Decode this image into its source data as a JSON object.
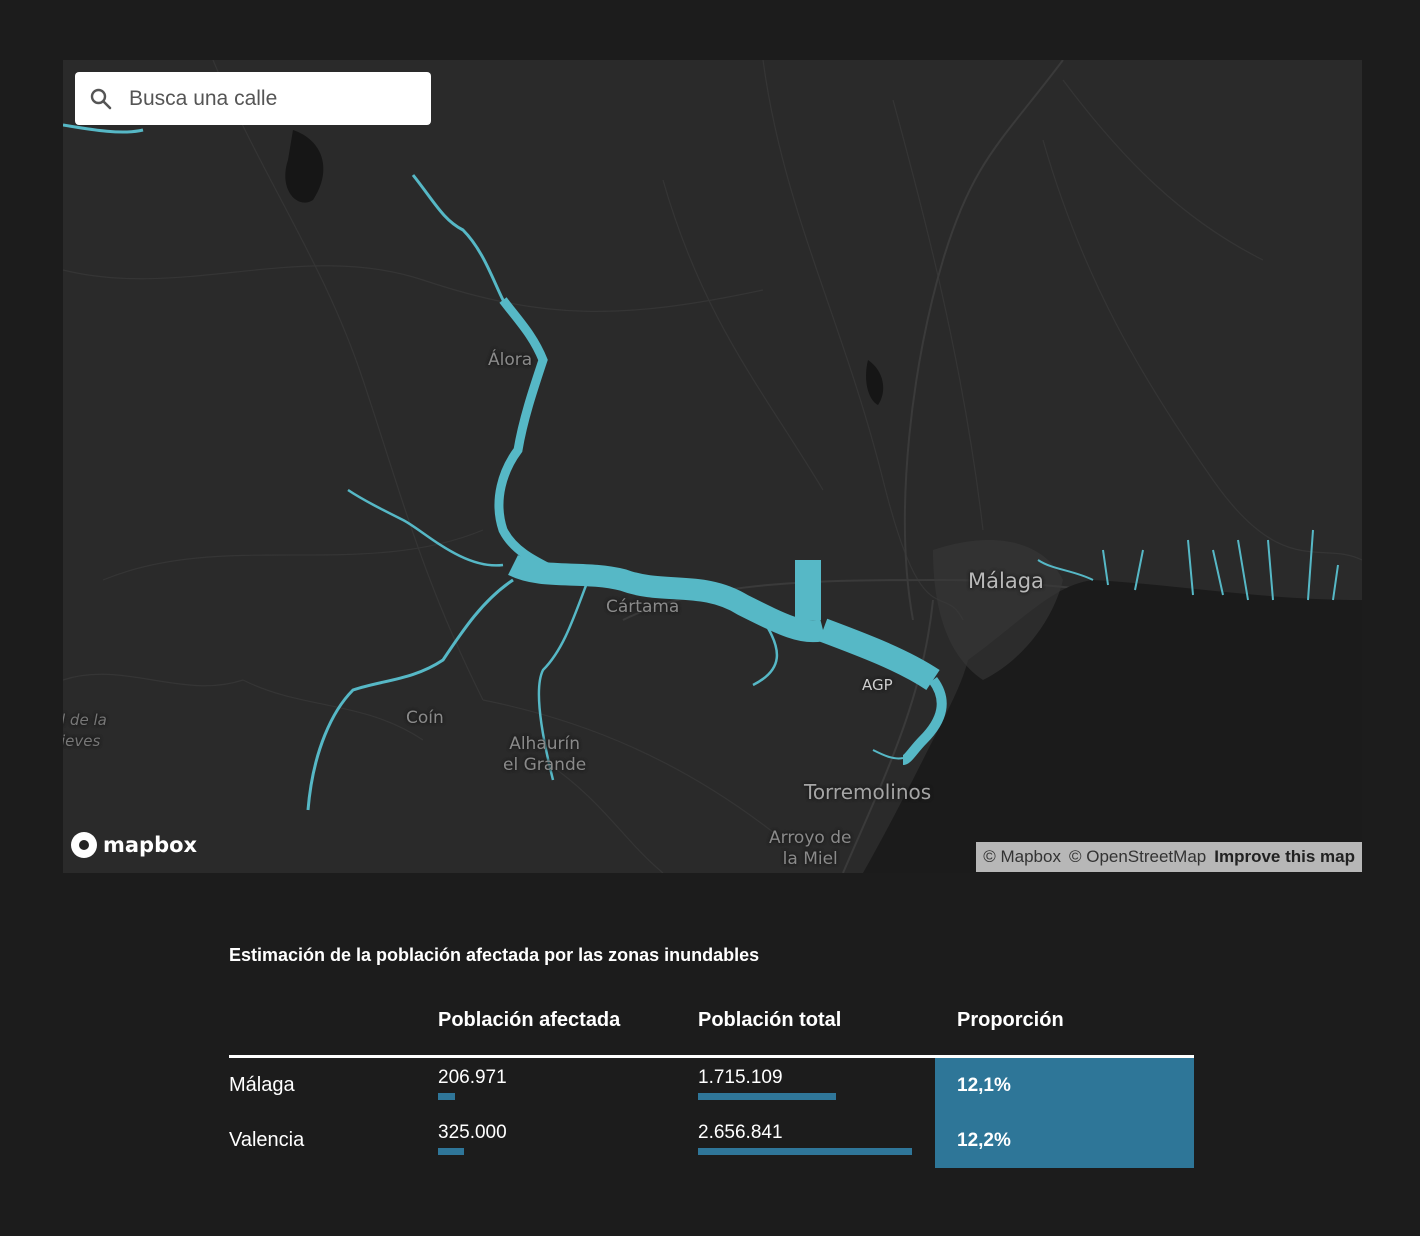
{
  "search": {
    "placeholder": "Busca una calle",
    "icon": "search-icon"
  },
  "map": {
    "labels": {
      "alora": "Álora",
      "cartama": "Cártama",
      "coin": "Coín",
      "alhaurin": "Alhaurín\nel Grande",
      "malaga": "Málaga",
      "agp": "AGP",
      "torremolinos": "Torremolinos",
      "arroyo": "Arroyo de\nla Miel",
      "edge": "l de la\nieves"
    },
    "colors": {
      "land": "#2a2a2a",
      "sea": "#1a1a1a",
      "flood": "#56b8c6"
    },
    "logo_text": "mapbox",
    "attribution": {
      "mapbox": "© Mapbox",
      "osm": "© OpenStreetMap",
      "improve": "Improve this map"
    }
  },
  "stats": {
    "title": "Estimación de la población afectada por las zonas inundables",
    "headers": [
      "",
      "Población afectada",
      "Población total",
      "Proporción"
    ],
    "rows": [
      {
        "region": "Málaga",
        "affected": "206.971",
        "affected_value": 206971,
        "total": "1.715.109",
        "total_value": 1715109,
        "proportion": "12,1%"
      },
      {
        "region": "Valencia",
        "affected": "325.000",
        "affected_value": 325000,
        "total": "2.656.841",
        "total_value": 2656841,
        "proportion": "12,2%"
      }
    ],
    "bar_color": "#2f7699",
    "proportion_color": "#2e7698"
  }
}
